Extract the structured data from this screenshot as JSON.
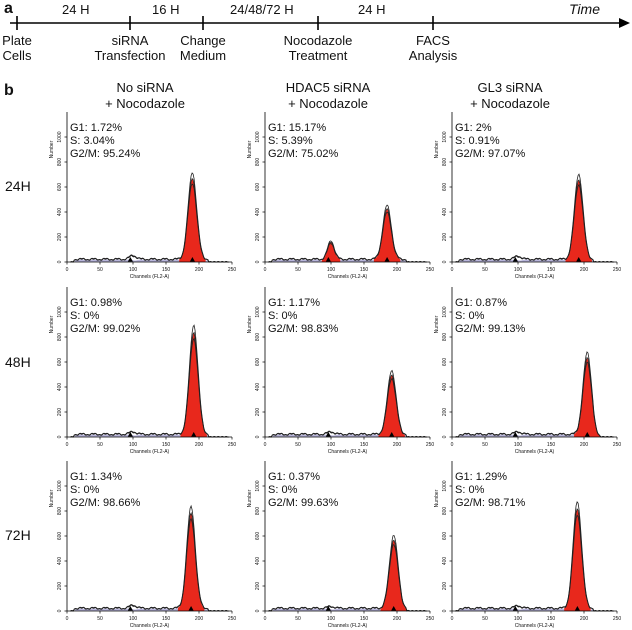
{
  "panel_a": {
    "letter": "a",
    "time_label": "Time",
    "durations": [
      "24 H",
      "16 H",
      "24/48/72 H",
      "24 H"
    ],
    "events": [
      {
        "line1": "Plate",
        "line2": "Cells"
      },
      {
        "line1": "siRNA",
        "line2": "Transfection"
      },
      {
        "line1": "Change",
        "line2": "Medium"
      },
      {
        "line1": "Nocodazole",
        "line2": "Treatment"
      },
      {
        "line1": "FACS",
        "line2": "Analysis"
      }
    ]
  },
  "panel_b": {
    "letter": "b",
    "columns": [
      {
        "line1": "No siRNA",
        "line2": "+ Nocodazole"
      },
      {
        "line1": "HDAC5 siRNA",
        "line2": "+ Nocodazole"
      },
      {
        "line1": "GL3 siRNA",
        "line2": "+ Nocodazole"
      }
    ],
    "rows": [
      "24H",
      "48H",
      "72H"
    ]
  },
  "chart_data": {
    "type": "area",
    "subtype": "flow cytometry DNA content histograms (3x3 grid)",
    "xlabel": "Channels (FL2-A)",
    "ylabel": "Number",
    "xlim": [
      0,
      250
    ],
    "ylim": [
      0,
      1200
    ],
    "xticks": [
      "0",
      "50",
      "100",
      "150",
      "200",
      "250"
    ],
    "yticks": [
      "0",
      "200",
      "400",
      "600",
      "800",
      "1000"
    ],
    "colors": {
      "g2m_fill": "#e8281c",
      "g1_fill": "#b9b6dc",
      "trace": "#222222"
    },
    "panels": [
      {
        "row": "24H",
        "column": "No siRNA + Nocodazole",
        "g1_label": "G1: 1.72%",
        "s_label": "S: 3.04%",
        "g2m_label": "G2/M: 95.24%",
        "g1_peak_x": 100,
        "g1_peak_y": 30,
        "g2m_peak_x": 190,
        "g2m_peak_y": 650
      },
      {
        "row": "24H",
        "column": "HDAC5 siRNA + Nocodazole",
        "g1_label": "G1: 15.17%",
        "s_label": "S: 5.39%",
        "g2m_label": "G2/M: 75.02%",
        "g1_peak_x": 100,
        "g1_peak_y": 140,
        "g2m_peak_x": 185,
        "g2m_peak_y": 400
      },
      {
        "row": "24H",
        "column": "GL3 siRNA + Nocodazole",
        "g1_label": "G1: 2%",
        "s_label": "S: 0.91%",
        "g2m_label": "G2/M: 97.07%",
        "g1_peak_x": 100,
        "g1_peak_y": 25,
        "g2m_peak_x": 192,
        "g2m_peak_y": 640
      },
      {
        "row": "48H",
        "column": "No siRNA + Nocodazole",
        "g1_label": "G1: 0.98%",
        "s_label": "S: 0%",
        "g2m_label": "G2/M: 99.02%",
        "g1_peak_x": 100,
        "g1_peak_y": 20,
        "g2m_peak_x": 192,
        "g2m_peak_y": 820
      },
      {
        "row": "48H",
        "column": "HDAC5 siRNA + Nocodazole",
        "g1_label": "G1: 1.17%",
        "s_label": "S: 0%",
        "g2m_label": "G2/M: 98.83%",
        "g1_peak_x": 100,
        "g1_peak_y": 20,
        "g2m_peak_x": 192,
        "g2m_peak_y": 480
      },
      {
        "row": "48H",
        "column": "GL3 siRNA + Nocodazole",
        "g1_label": "G1: 0.87%",
        "s_label": "S: 0%",
        "g2m_label": "G2/M: 99.13%",
        "g1_peak_x": 100,
        "g1_peak_y": 20,
        "g2m_peak_x": 205,
        "g2m_peak_y": 610
      },
      {
        "row": "72H",
        "column": "No siRNA + Nocodazole",
        "g1_label": "G1: 1.34%",
        "s_label": "S: 0%",
        "g2m_label": "G2/M: 98.66%",
        "g1_peak_x": 100,
        "g1_peak_y": 25,
        "g2m_peak_x": 188,
        "g2m_peak_y": 760
      },
      {
        "row": "72H",
        "column": "HDAC5 siRNA + Nocodazole",
        "g1_label": "G1: 0.37%",
        "s_label": "S: 0%",
        "g2m_label": "G2/M: 99.63%",
        "g1_peak_x": 100,
        "g1_peak_y": 15,
        "g2m_peak_x": 195,
        "g2m_peak_y": 550
      },
      {
        "row": "72H",
        "column": "GL3 siRNA + Nocodazole",
        "g1_label": "G1: 1.29%",
        "s_label": "S: 0%",
        "g2m_label": "G2/M: 98.71%",
        "g1_peak_x": 100,
        "g1_peak_y": 20,
        "g2m_peak_x": 190,
        "g2m_peak_y": 800
      }
    ]
  }
}
